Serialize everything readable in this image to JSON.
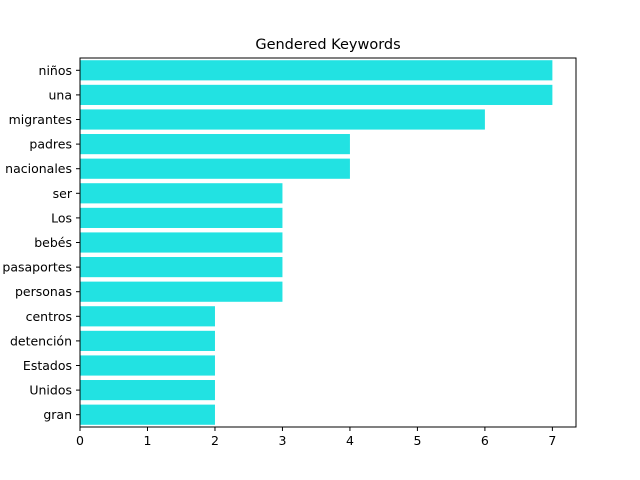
{
  "chart_data": {
    "type": "bar",
    "orientation": "horizontal",
    "title": "Gendered Keywords",
    "xlabel": "",
    "ylabel": "",
    "categories": [
      "niños",
      "una",
      "migrantes",
      "padres",
      "nacionales",
      "ser",
      "Los",
      "bebés",
      "pasaportes",
      "personas",
      "centros",
      "detención",
      "Estados",
      "Unidos",
      "gran"
    ],
    "values": [
      7,
      7,
      6,
      4,
      4,
      3,
      3,
      3,
      3,
      3,
      2,
      2,
      2,
      2,
      2
    ],
    "xlim": [
      0,
      7.35
    ],
    "xticks": [
      0,
      1,
      2,
      3,
      4,
      5,
      6,
      7
    ],
    "bar_color": "#22e2e2",
    "grid": false,
    "legend": "none"
  }
}
